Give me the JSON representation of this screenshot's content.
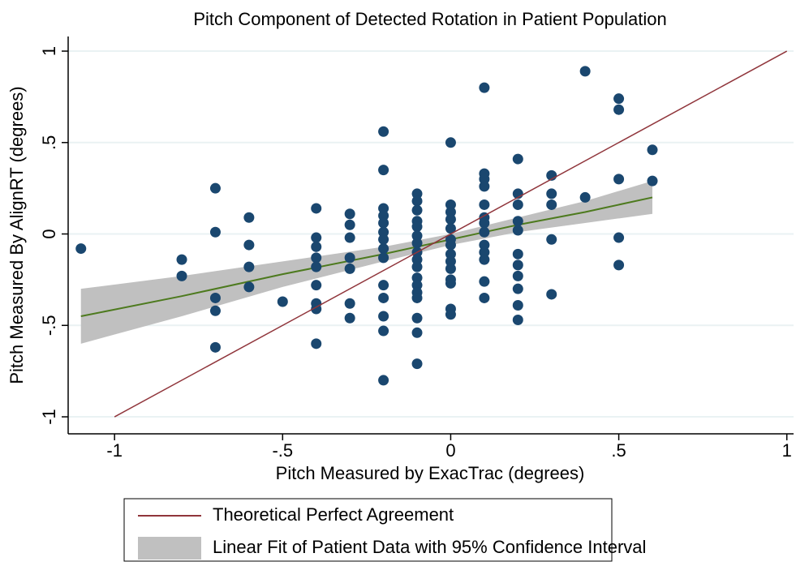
{
  "chart_data": {
    "type": "scatter",
    "title": "Pitch Component of Detected Rotation in Patient Population",
    "x_label": "Pitch Measured by ExacTrac (degrees)",
    "y_label": "Pitch Measured By AlignRT (degrees)",
    "xlim": [
      -1.138,
      1.02
    ],
    "ylim": [
      -1.093,
      1.08
    ],
    "xticks": [
      -1,
      {
        "value": -0.5,
        "label": "-.5"
      },
      0,
      {
        "value": 0.5,
        "label": ".5"
      },
      1
    ],
    "yticks": [
      -1,
      {
        "value": -0.5,
        "label": "-.5"
      },
      0,
      {
        "value": 0.5,
        "label": ".5"
      },
      1
    ],
    "grid": true,
    "series": [
      {
        "type": "scatter",
        "color": "#1a476f",
        "x": [
          -1.1,
          -0.8,
          -0.8,
          -0.7,
          -0.7,
          -0.7,
          -0.7,
          -0.7,
          -0.6,
          -0.6,
          -0.6,
          -0.6,
          -0.5,
          -0.4,
          -0.4,
          -0.4,
          -0.4,
          -0.4,
          -0.4,
          -0.4,
          -0.4,
          -0.4,
          -0.3,
          -0.3,
          -0.3,
          -0.3,
          -0.3,
          -0.3,
          -0.3,
          -0.2,
          -0.2,
          -0.2,
          -0.2,
          -0.2,
          -0.2,
          -0.2,
          -0.2,
          -0.2,
          -0.2,
          -0.2,
          -0.2,
          -0.2,
          -0.2,
          -0.1,
          -0.1,
          -0.1,
          -0.1,
          -0.1,
          -0.1,
          -0.1,
          -0.1,
          -0.1,
          -0.1,
          -0.1,
          -0.1,
          -0.1,
          -0.1,
          -0.1,
          -0.1,
          -0.1,
          0,
          0,
          0,
          0,
          0,
          0,
          0,
          0,
          0,
          0,
          0,
          0,
          0,
          0,
          0.1,
          0.1,
          0.1,
          0.1,
          0.1,
          0.1,
          0.1,
          0.1,
          0.1,
          0.1,
          0.1,
          0.1,
          0.1,
          0.2,
          0.2,
          0.2,
          0.2,
          0.2,
          0.2,
          0.2,
          0.2,
          0.2,
          0.2,
          0.2,
          0.3,
          0.3,
          0.3,
          0.3,
          0.3,
          0.4,
          0.4,
          0.5,
          0.5,
          0.5,
          0.5,
          0.5,
          0.6,
          0.6
        ],
        "values": [
          -0.08,
          -0.14,
          -0.23,
          0.25,
          0.01,
          -0.35,
          -0.42,
          -0.62,
          0.09,
          -0.06,
          -0.18,
          -0.29,
          -0.37,
          0.14,
          -0.02,
          -0.07,
          -0.13,
          -0.18,
          -0.28,
          -0.38,
          -0.41,
          -0.6,
          0.11,
          0.05,
          -0.02,
          -0.13,
          -0.19,
          -0.38,
          -0.46,
          0.56,
          0.35,
          0.14,
          0.1,
          0.06,
          0.01,
          -0.03,
          -0.08,
          -0.13,
          -0.28,
          -0.35,
          -0.45,
          -0.53,
          -0.8,
          0.22,
          0.18,
          0.13,
          0.07,
          0.04,
          -0.01,
          -0.05,
          -0.1,
          -0.14,
          -0.18,
          -0.24,
          -0.28,
          -0.32,
          -0.35,
          -0.46,
          -0.54,
          -0.71,
          0.5,
          0.16,
          0.12,
          0.08,
          0.03,
          -0.03,
          -0.06,
          -0.11,
          -0.15,
          -0.19,
          -0.25,
          -0.27,
          -0.41,
          -0.44,
          0.8,
          0.33,
          0.3,
          0.26,
          0.16,
          0.09,
          0.06,
          0.01,
          -0.06,
          -0.1,
          -0.14,
          -0.26,
          -0.35,
          0.41,
          0.22,
          0.16,
          0.07,
          0.02,
          -0.11,
          -0.17,
          -0.23,
          -0.3,
          -0.39,
          -0.47,
          0.32,
          0.22,
          0.16,
          -0.03,
          -0.33,
          0.89,
          0.2,
          0.74,
          0.68,
          0.3,
          -0.02,
          -0.17,
          0.46,
          0.29
        ]
      },
      {
        "type": "line",
        "name": "Theoretical Perfect Agreement",
        "color": "#90353b",
        "x": [
          -1,
          1
        ],
        "values": [
          -1,
          1
        ]
      },
      {
        "type": "band",
        "name": "Linear Fit of Patient Data with 95% Confidence Interval",
        "color": "#c0c0c0",
        "line_color": "#4d7a1e",
        "x": [
          -1.1,
          -0.8,
          -0.5,
          -0.2,
          0,
          0.2,
          0.4,
          0.6
        ],
        "values": [
          -0.45,
          -0.34,
          -0.22,
          -0.11,
          -0.03,
          0.05,
          0.12,
          0.2
        ],
        "lower": [
          -0.6,
          -0.45,
          -0.29,
          -0.15,
          -0.06,
          0.01,
          0.06,
          0.11
        ],
        "upper": [
          -0.3,
          -0.23,
          -0.15,
          -0.07,
          0,
          0.09,
          0.18,
          0.29
        ]
      }
    ]
  }
}
